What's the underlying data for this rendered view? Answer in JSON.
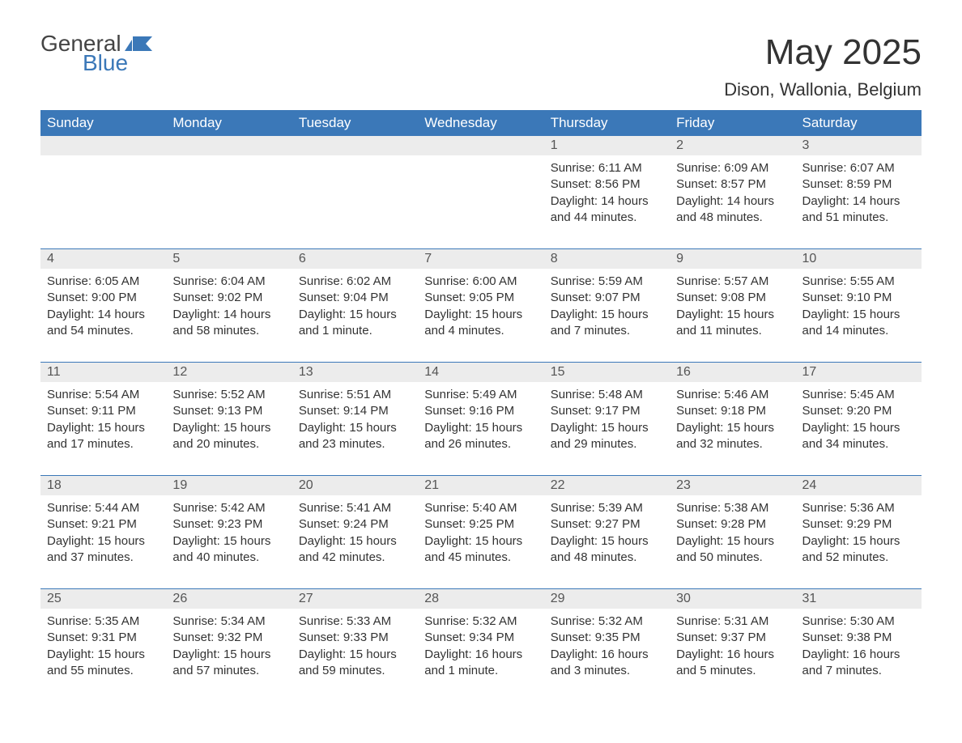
{
  "logo": {
    "text1": "General",
    "text2": "Blue",
    "icon_color": "#3b78b8"
  },
  "title": "May 2025",
  "subtitle": "Dison, Wallonia, Belgium",
  "colors": {
    "header_bg": "#3b78b8",
    "header_text": "#ffffff",
    "daynum_bg": "#ececec",
    "body_text": "#333333",
    "rule": "#3b78b8"
  },
  "days_of_week": [
    "Sunday",
    "Monday",
    "Tuesday",
    "Wednesday",
    "Thursday",
    "Friday",
    "Saturday"
  ],
  "weeks": [
    [
      null,
      null,
      null,
      null,
      {
        "n": "1",
        "sunrise": "6:11 AM",
        "sunset": "8:56 PM",
        "daylight": "14 hours and 44 minutes."
      },
      {
        "n": "2",
        "sunrise": "6:09 AM",
        "sunset": "8:57 PM",
        "daylight": "14 hours and 48 minutes."
      },
      {
        "n": "3",
        "sunrise": "6:07 AM",
        "sunset": "8:59 PM",
        "daylight": "14 hours and 51 minutes."
      }
    ],
    [
      {
        "n": "4",
        "sunrise": "6:05 AM",
        "sunset": "9:00 PM",
        "daylight": "14 hours and 54 minutes."
      },
      {
        "n": "5",
        "sunrise": "6:04 AM",
        "sunset": "9:02 PM",
        "daylight": "14 hours and 58 minutes."
      },
      {
        "n": "6",
        "sunrise": "6:02 AM",
        "sunset": "9:04 PM",
        "daylight": "15 hours and 1 minute."
      },
      {
        "n": "7",
        "sunrise": "6:00 AM",
        "sunset": "9:05 PM",
        "daylight": "15 hours and 4 minutes."
      },
      {
        "n": "8",
        "sunrise": "5:59 AM",
        "sunset": "9:07 PM",
        "daylight": "15 hours and 7 minutes."
      },
      {
        "n": "9",
        "sunrise": "5:57 AM",
        "sunset": "9:08 PM",
        "daylight": "15 hours and 11 minutes."
      },
      {
        "n": "10",
        "sunrise": "5:55 AM",
        "sunset": "9:10 PM",
        "daylight": "15 hours and 14 minutes."
      }
    ],
    [
      {
        "n": "11",
        "sunrise": "5:54 AM",
        "sunset": "9:11 PM",
        "daylight": "15 hours and 17 minutes."
      },
      {
        "n": "12",
        "sunrise": "5:52 AM",
        "sunset": "9:13 PM",
        "daylight": "15 hours and 20 minutes."
      },
      {
        "n": "13",
        "sunrise": "5:51 AM",
        "sunset": "9:14 PM",
        "daylight": "15 hours and 23 minutes."
      },
      {
        "n": "14",
        "sunrise": "5:49 AM",
        "sunset": "9:16 PM",
        "daylight": "15 hours and 26 minutes."
      },
      {
        "n": "15",
        "sunrise": "5:48 AM",
        "sunset": "9:17 PM",
        "daylight": "15 hours and 29 minutes."
      },
      {
        "n": "16",
        "sunrise": "5:46 AM",
        "sunset": "9:18 PM",
        "daylight": "15 hours and 32 minutes."
      },
      {
        "n": "17",
        "sunrise": "5:45 AM",
        "sunset": "9:20 PM",
        "daylight": "15 hours and 34 minutes."
      }
    ],
    [
      {
        "n": "18",
        "sunrise": "5:44 AM",
        "sunset": "9:21 PM",
        "daylight": "15 hours and 37 minutes."
      },
      {
        "n": "19",
        "sunrise": "5:42 AM",
        "sunset": "9:23 PM",
        "daylight": "15 hours and 40 minutes."
      },
      {
        "n": "20",
        "sunrise": "5:41 AM",
        "sunset": "9:24 PM",
        "daylight": "15 hours and 42 minutes."
      },
      {
        "n": "21",
        "sunrise": "5:40 AM",
        "sunset": "9:25 PM",
        "daylight": "15 hours and 45 minutes."
      },
      {
        "n": "22",
        "sunrise": "5:39 AM",
        "sunset": "9:27 PM",
        "daylight": "15 hours and 48 minutes."
      },
      {
        "n": "23",
        "sunrise": "5:38 AM",
        "sunset": "9:28 PM",
        "daylight": "15 hours and 50 minutes."
      },
      {
        "n": "24",
        "sunrise": "5:36 AM",
        "sunset": "9:29 PM",
        "daylight": "15 hours and 52 minutes."
      }
    ],
    [
      {
        "n": "25",
        "sunrise": "5:35 AM",
        "sunset": "9:31 PM",
        "daylight": "15 hours and 55 minutes."
      },
      {
        "n": "26",
        "sunrise": "5:34 AM",
        "sunset": "9:32 PM",
        "daylight": "15 hours and 57 minutes."
      },
      {
        "n": "27",
        "sunrise": "5:33 AM",
        "sunset": "9:33 PM",
        "daylight": "15 hours and 59 minutes."
      },
      {
        "n": "28",
        "sunrise": "5:32 AM",
        "sunset": "9:34 PM",
        "daylight": "16 hours and 1 minute."
      },
      {
        "n": "29",
        "sunrise": "5:32 AM",
        "sunset": "9:35 PM",
        "daylight": "16 hours and 3 minutes."
      },
      {
        "n": "30",
        "sunrise": "5:31 AM",
        "sunset": "9:37 PM",
        "daylight": "16 hours and 5 minutes."
      },
      {
        "n": "31",
        "sunrise": "5:30 AM",
        "sunset": "9:38 PM",
        "daylight": "16 hours and 7 minutes."
      }
    ]
  ],
  "labels": {
    "sunrise": "Sunrise: ",
    "sunset": "Sunset: ",
    "daylight": "Daylight: "
  }
}
